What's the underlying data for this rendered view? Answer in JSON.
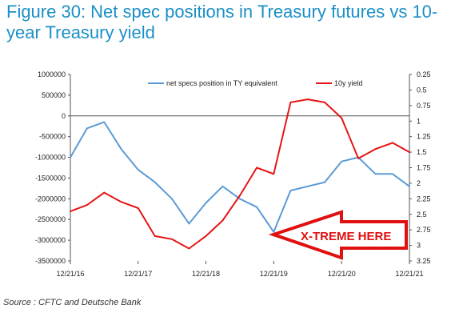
{
  "title": "Figure 30: Net spec positions in Treasury futures vs 10-year Treasury yield",
  "source": "Source : CFTC and Deutsche Bank",
  "chart_data": {
    "type": "line",
    "x_tick_labels": [
      "12/21/16",
      "12/21/17",
      "12/21/18",
      "12/21/19",
      "12/21/20",
      "12/21/21"
    ],
    "x": [
      "2016-12-21",
      "2017-03-21",
      "2017-06-21",
      "2017-09-21",
      "2017-12-21",
      "2018-03-21",
      "2018-06-21",
      "2018-09-21",
      "2018-12-21",
      "2019-03-21",
      "2019-06-21",
      "2019-09-21",
      "2019-12-21",
      "2020-03-21",
      "2020-06-21",
      "2020-09-21",
      "2020-12-21",
      "2021-03-21",
      "2021-06-21",
      "2021-09-21",
      "2021-12-21"
    ],
    "left_axis": {
      "ylim": [
        -3500000,
        1000000
      ],
      "tick_labels": [
        "1000000",
        "500000",
        "0",
        "-500000",
        "-1000000",
        "-1500000",
        "-2000000",
        "-2500000",
        "-3000000",
        "-3500000"
      ]
    },
    "right_axis": {
      "ylim": [
        0.25,
        3.25
      ],
      "inverted": true,
      "tick_labels": [
        "0.25",
        "0.5",
        "0.75",
        "1",
        "1.25",
        "1.5",
        "1.75",
        "2",
        "2.25",
        "2.5",
        "2.75",
        "3",
        "3.25"
      ]
    },
    "series": [
      {
        "name": "net specs position in TY equivalent",
        "axis": "left",
        "color": "#5b9bd5",
        "values": [
          -1000000,
          -300000,
          -150000,
          -800000,
          -1300000,
          -1600000,
          -2000000,
          -2600000,
          -2100000,
          -1700000,
          -2000000,
          -2200000,
          -2800000,
          -1800000,
          -1700000,
          -1600000,
          -1100000,
          -1000000,
          -1400000,
          -1400000,
          -1700000
        ]
      },
      {
        "name": "10y yield",
        "axis": "right",
        "color": "#e51515",
        "values": [
          2.45,
          2.35,
          2.15,
          2.3,
          2.4,
          2.85,
          2.9,
          3.05,
          2.85,
          2.6,
          2.2,
          1.75,
          1.85,
          0.7,
          0.65,
          0.7,
          0.95,
          1.6,
          1.45,
          1.35,
          1.5
        ]
      }
    ],
    "annotation": "X-TREME HERE",
    "legend_position": "top"
  }
}
